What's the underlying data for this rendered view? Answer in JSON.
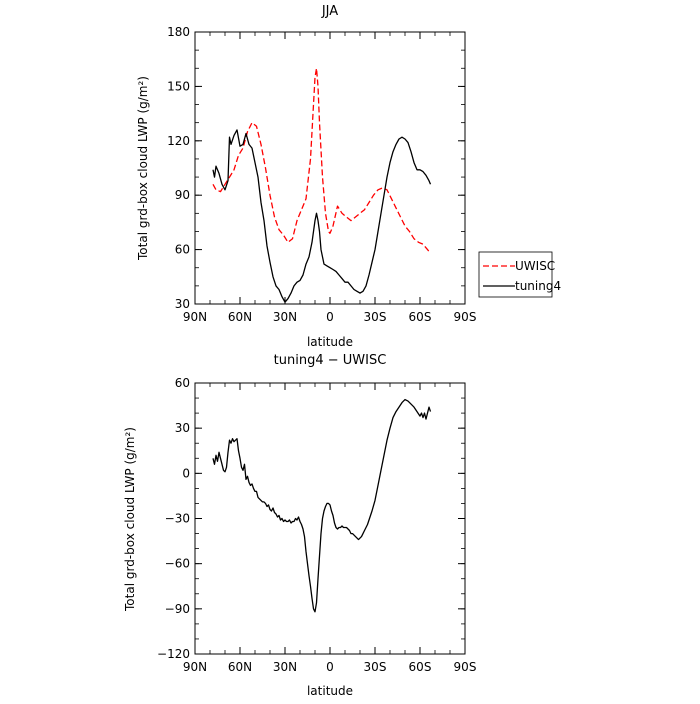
{
  "chart_data": [
    {
      "type": "line",
      "title": "JJA",
      "xlabel": "latitude",
      "ylabel": "Total grd-box cloud LWP (g/m²)",
      "xlim": [
        90,
        -90
      ],
      "ylim": [
        30,
        180
      ],
      "x_ticks": [
        90,
        60,
        30,
        0,
        -30,
        -60,
        -90
      ],
      "x_tick_labels": [
        "90N",
        "60N",
        "30N",
        "0",
        "30S",
        "60S",
        "90S"
      ],
      "y_ticks": [
        30,
        60,
        90,
        120,
        150,
        180
      ],
      "y_tick_labels": [
        "30",
        "60",
        "90",
        "120",
        "150",
        "180"
      ],
      "legend_position": "right",
      "series": [
        {
          "name": "UWISC",
          "color": "#ff0000",
          "dash": "dashed",
          "x": [
            78,
            76,
            73,
            70,
            67,
            64,
            61,
            58,
            55,
            52,
            49,
            46,
            43,
            40,
            37,
            34,
            31,
            28,
            25,
            22,
            19,
            16,
            13,
            11,
            10,
            9,
            8,
            7,
            5,
            3,
            1,
            0,
            -2,
            -5,
            -8,
            -11,
            -14,
            -17,
            -20,
            -23,
            -26,
            -29,
            -32,
            -35,
            -38,
            -41,
            -44,
            -47,
            -50,
            -53,
            -56,
            -59,
            -62,
            -65,
            -67
          ],
          "y": [
            96,
            93,
            92,
            96,
            100,
            104,
            112,
            116,
            125,
            130,
            128,
            118,
            105,
            90,
            78,
            71,
            68,
            64,
            66,
            76,
            82,
            88,
            110,
            140,
            155,
            160,
            150,
            130,
            100,
            80,
            70,
            69,
            73,
            84,
            80,
            78,
            76,
            78,
            80,
            82,
            86,
            90,
            93,
            94,
            93,
            88,
            83,
            78,
            73,
            70,
            66,
            64,
            63,
            60,
            58
          ]
        },
        {
          "name": "tuning4",
          "color": "#000000",
          "dash": "solid",
          "x": [
            78,
            77,
            76,
            75,
            74,
            72,
            70,
            68,
            67,
            66,
            64,
            62,
            60,
            58,
            56,
            54,
            52,
            50,
            48,
            46,
            44,
            42,
            40,
            38,
            36,
            34,
            32,
            30,
            28,
            26,
            24,
            22,
            20,
            18,
            16,
            14,
            12,
            10,
            9,
            8,
            7,
            6,
            4,
            2,
            0,
            -2,
            -4,
            -6,
            -8,
            -10,
            -12,
            -14,
            -16,
            -18,
            -20,
            -22,
            -24,
            -26,
            -28,
            -30,
            -32,
            -34,
            -36,
            -38,
            -40,
            -42,
            -44,
            -46,
            -48,
            -50,
            -52,
            -54,
            -56,
            -58,
            -60,
            -62,
            -64,
            -66,
            -67
          ],
          "y": [
            104,
            100,
            106,
            104,
            102,
            96,
            93,
            98,
            122,
            118,
            123,
            126,
            117,
            118,
            124,
            118,
            116,
            108,
            100,
            86,
            76,
            62,
            53,
            45,
            40,
            38,
            34,
            31,
            33,
            36,
            40,
            42,
            43,
            46,
            52,
            56,
            64,
            76,
            80,
            76,
            70,
            60,
            52,
            51,
            50,
            49,
            48,
            46,
            44,
            42,
            42,
            40,
            38,
            37,
            36,
            37,
            40,
            46,
            53,
            60,
            70,
            80,
            90,
            100,
            108,
            114,
            118,
            121,
            122,
            121,
            119,
            114,
            108,
            104,
            104,
            103,
            101,
            98,
            96
          ]
        }
      ]
    },
    {
      "type": "line",
      "title": "tuning4 − UWISC",
      "xlabel": "latitude",
      "ylabel": "Total grd-box cloud LWP (g/m²)",
      "xlim": [
        90,
        -90
      ],
      "ylim": [
        -120,
        60
      ],
      "x_ticks": [
        90,
        60,
        30,
        0,
        -30,
        -60,
        -90
      ],
      "x_tick_labels": [
        "90N",
        "60N",
        "30N",
        "0",
        "30S",
        "60S",
        "90S"
      ],
      "y_ticks": [
        -120,
        -90,
        -60,
        -30,
        0,
        30,
        60
      ],
      "y_tick_labels": [
        "−120",
        "−90",
        "−60",
        "−30",
        "0",
        "30",
        "60"
      ],
      "series": [
        {
          "color": "#000000",
          "dash": "solid",
          "x": [
            78,
            77,
            76,
            75,
            74,
            73,
            72,
            71,
            70,
            69,
            68,
            67,
            66,
            65,
            64,
            63,
            62,
            61,
            60,
            59,
            58,
            57,
            56,
            55,
            54,
            53,
            52,
            51,
            50,
            49,
            48,
            47,
            46,
            45,
            44,
            43,
            42,
            41,
            40,
            39,
            38,
            37,
            36,
            35,
            34,
            33,
            32,
            31,
            30,
            29,
            28,
            27,
            26,
            25,
            24,
            23,
            22,
            21,
            20,
            19,
            18,
            17,
            16,
            15,
            14,
            13,
            12,
            11,
            10,
            9,
            8,
            7,
            6,
            5,
            4,
            3,
            2,
            1,
            0,
            -1,
            -2,
            -3,
            -4,
            -5,
            -6,
            -7,
            -8,
            -9,
            -10,
            -11,
            -12,
            -13,
            -14,
            -15,
            -16,
            -17,
            -18,
            -19,
            -20,
            -21,
            -22,
            -23,
            -24,
            -25,
            -26,
            -27,
            -28,
            -30,
            -32,
            -34,
            -36,
            -38,
            -40,
            -42,
            -44,
            -46,
            -48,
            -50,
            -52,
            -54,
            -56,
            -58,
            -60,
            -61,
            -62,
            -63,
            -64,
            -65,
            -66,
            -67
          ],
          "y": [
            10,
            6,
            12,
            8,
            14,
            10,
            6,
            2,
            1,
            4,
            14,
            22,
            20,
            23,
            21,
            22,
            23,
            15,
            10,
            4,
            2,
            6,
            -4,
            -2,
            -6,
            -8,
            -7,
            -10,
            -12,
            -12,
            -16,
            -17,
            -18,
            -19,
            -19,
            -20,
            -22,
            -21,
            -24,
            -25,
            -23,
            -26,
            -27,
            -29,
            -28,
            -31,
            -30,
            -32,
            -31,
            -32,
            -32,
            -31,
            -33,
            -32,
            -32,
            -30,
            -31,
            -29,
            -32,
            -34,
            -37,
            -42,
            -52,
            -60,
            -68,
            -75,
            -83,
            -90,
            -92,
            -86,
            -70,
            -55,
            -40,
            -30,
            -25,
            -22,
            -20,
            -20,
            -21,
            -25,
            -28,
            -33,
            -36,
            -37,
            -36,
            -36,
            -35,
            -36,
            -36,
            -36,
            -37,
            -38,
            -40,
            -40,
            -41,
            -42,
            -43,
            -44,
            -43,
            -42,
            -40,
            -38,
            -36,
            -34,
            -31,
            -28,
            -25,
            -18,
            -8,
            2,
            12,
            22,
            30,
            37,
            41,
            44,
            47,
            49,
            48,
            46,
            44,
            41,
            38,
            40,
            37,
            40,
            36,
            40,
            44,
            41
          ]
        }
      ]
    }
  ]
}
